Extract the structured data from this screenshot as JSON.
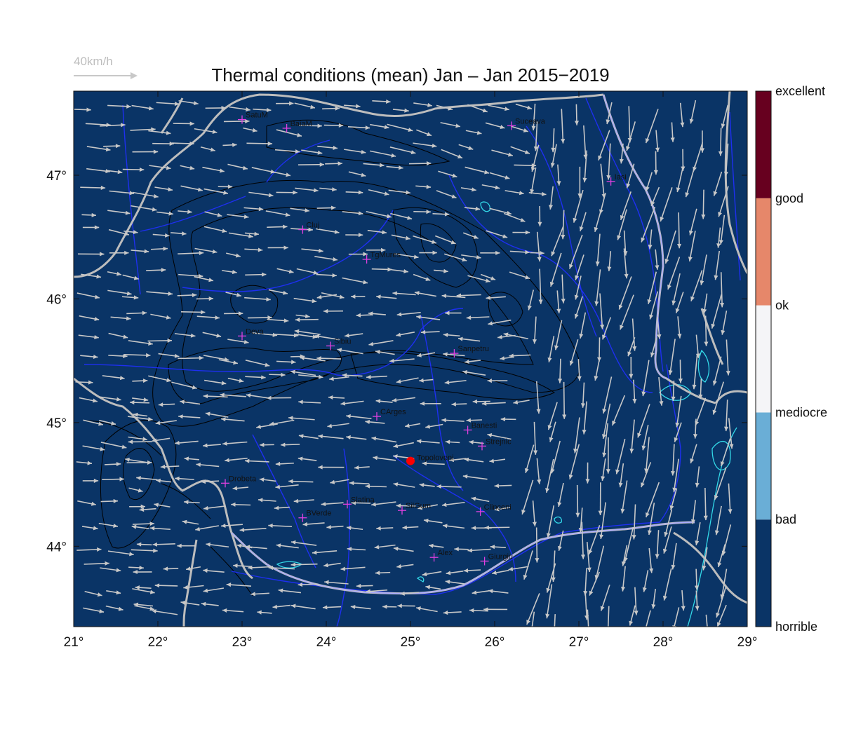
{
  "title": "Thermal conditions (mean) Jan – Jan  2015−2019",
  "wind_scale": {
    "label": "40km/h"
  },
  "map": {
    "lon_range": [
      21,
      29
    ],
    "lat_range": [
      43.35,
      47.68
    ],
    "background_color": "#0a3466",
    "lon_ticks": [
      {
        "value": 21,
        "label": "21°"
      },
      {
        "value": 22,
        "label": "22°"
      },
      {
        "value": 23,
        "label": "23°"
      },
      {
        "value": 24,
        "label": "24°"
      },
      {
        "value": 25,
        "label": "25°"
      },
      {
        "value": 26,
        "label": "26°"
      },
      {
        "value": 27,
        "label": "27°"
      },
      {
        "value": 28,
        "label": "28°"
      },
      {
        "value": 29,
        "label": "29°"
      }
    ],
    "lat_ticks": [
      {
        "value": 47,
        "label": "47°"
      },
      {
        "value": 46,
        "label": "46°"
      },
      {
        "value": 45,
        "label": "45°"
      },
      {
        "value": 44,
        "label": "44°"
      }
    ],
    "cities": [
      {
        "name": "SatuM",
        "lon": 23.0,
        "lat": 47.45
      },
      {
        "name": "BaiaM",
        "lon": 23.53,
        "lat": 47.38
      },
      {
        "name": "Suceava",
        "lon": 26.2,
        "lat": 47.4
      },
      {
        "name": "Iasi",
        "lon": 27.38,
        "lat": 46.95
      },
      {
        "name": "Cluj",
        "lon": 23.72,
        "lat": 46.56
      },
      {
        "name": "TgMures",
        "lon": 24.48,
        "lat": 46.32
      },
      {
        "name": "Deva",
        "lon": 23.0,
        "lat": 45.7
      },
      {
        "name": "Sibiu",
        "lon": 24.05,
        "lat": 45.62
      },
      {
        "name": "Sanpetru",
        "lon": 25.52,
        "lat": 45.56
      },
      {
        "name": "CArges",
        "lon": 24.6,
        "lat": 45.05
      },
      {
        "name": "Banesti",
        "lon": 25.68,
        "lat": 44.94
      },
      {
        "name": "Strejnic",
        "lon": 25.85,
        "lat": 44.81
      },
      {
        "name": "Drobeta",
        "lon": 22.8,
        "lat": 44.51
      },
      {
        "name": "Slatina",
        "lon": 24.25,
        "lat": 44.34
      },
      {
        "name": "SilGum",
        "lon": 24.9,
        "lat": 44.29
      },
      {
        "name": "Clinceni",
        "lon": 25.83,
        "lat": 44.28
      },
      {
        "name": "BVerde",
        "lon": 23.72,
        "lat": 44.23
      },
      {
        "name": "Alex",
        "lon": 25.28,
        "lat": 43.91
      },
      {
        "name": "Giurgiu",
        "lon": 25.88,
        "lat": 43.88
      }
    ],
    "target": {
      "name": "Topoloveni",
      "lon": 25.0,
      "lat": 44.69,
      "color": "#ff0000"
    }
  },
  "colorbar": {
    "categories": [
      {
        "label": "horrible",
        "color": "#0a3466"
      },
      {
        "label": "bad",
        "color": "#6aaed6"
      },
      {
        "label": "mediocre",
        "color": "#f5f5f7"
      },
      {
        "label": "ok",
        "color": "#e6876a"
      },
      {
        "label": "good",
        "color": "#67001f"
      },
      {
        "label": "excellent",
        "color": "#67001f"
      }
    ]
  },
  "colors": {
    "rivers": "#1e2ff0",
    "borders": "#bdbdbd",
    "relief_contours": "#000000",
    "lakes": "#33d9e8",
    "wind_arrows": "#c8c8c8",
    "city_markers": "#e040e0"
  }
}
